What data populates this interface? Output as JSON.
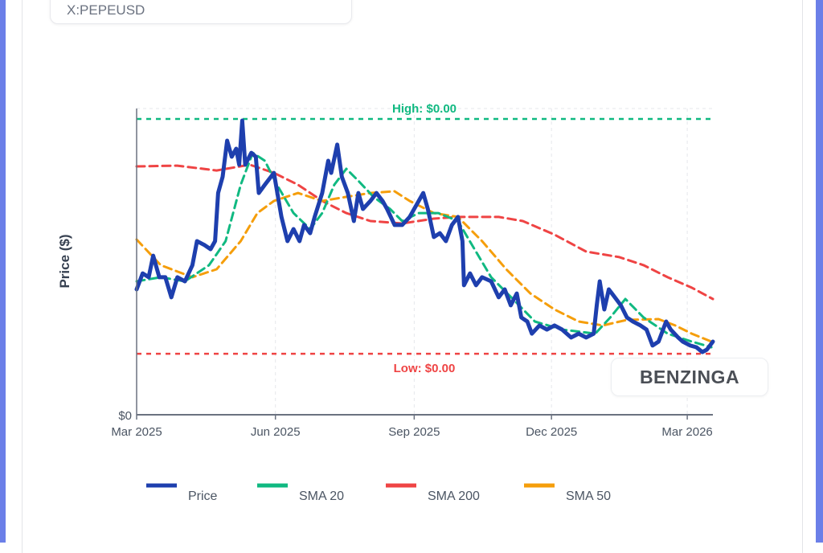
{
  "header": {
    "ticker": "X:PEPEUSD"
  },
  "watermark": "BENZINGA",
  "colors": {
    "price": "#1e3fae",
    "sma20": "#10b981",
    "sma200": "#ef4444",
    "sma50": "#f59e0b",
    "accent": "#6b7fe8"
  },
  "chart_data": {
    "type": "line",
    "title": "",
    "xlabel": "",
    "ylabel": "Price ($)",
    "x_units": "days since 2025-03-01",
    "y_units": "price in 1e-6 USD (approx.)",
    "xlim": [
      0,
      382
    ],
    "ylim": [
      0,
      16.46
    ],
    "x_ticks": [
      {
        "day": 0,
        "label": "Mar 2025"
      },
      {
        "day": 92,
        "label": "Jun 2025"
      },
      {
        "day": 184,
        "label": "Sep 2025"
      },
      {
        "day": 275,
        "label": "Dec 2025"
      },
      {
        "day": 365,
        "label": "Mar 2026"
      }
    ],
    "y_ticks": [
      {
        "value": 0,
        "label": "$0"
      }
    ],
    "grid": true,
    "legend_position": "bottom",
    "annotations": {
      "high": {
        "value": 15.9,
        "label": "High: $0.00"
      },
      "low": {
        "value": 3.28,
        "label": "Low: $0.00"
      }
    },
    "series": [
      {
        "key": "price",
        "name": "Price",
        "x": [
          0,
          4,
          8,
          11,
          15,
          19,
          23,
          27,
          32,
          37,
          40,
          45,
          49,
          52,
          54,
          57,
          60,
          63,
          66,
          68,
          70,
          72,
          76,
          79,
          81,
          85,
          91,
          96,
          100,
          104,
          108,
          111,
          115,
          118,
          123,
          127,
          129,
          133,
          136,
          140,
          144,
          147,
          150,
          155,
          159,
          163,
          166,
          171,
          176,
          181,
          187,
          190,
          193,
          197,
          201,
          205,
          209,
          213,
          216,
          217,
          221,
          225,
          229,
          235,
          240,
          244,
          248,
          252,
          255,
          259,
          262,
          267,
          272,
          277,
          282,
          288,
          293,
          298,
          303,
          305,
          307,
          310,
          313,
          317,
          321,
          325,
          329,
          334,
          338,
          342,
          346,
          351,
          354,
          359,
          362,
          367,
          371,
          375,
          378,
          382
        ],
        "y": [
          6.74,
          7.6,
          7.39,
          8.55,
          7.39,
          7.39,
          6.31,
          7.39,
          7.17,
          8.04,
          9.33,
          9.12,
          8.9,
          9.33,
          11.92,
          12.79,
          14.73,
          13.87,
          14.3,
          13.44,
          15.81,
          13.44,
          14.08,
          13.87,
          11.92,
          12.36,
          13.0,
          10.63,
          9.33,
          9.98,
          9.33,
          10.2,
          9.76,
          10.63,
          11.92,
          13.65,
          13.0,
          14.52,
          12.79,
          11.92,
          10.41,
          11.92,
          11.06,
          11.49,
          11.92,
          11.49,
          11.06,
          10.2,
          10.2,
          10.63,
          11.49,
          11.92,
          11.06,
          9.55,
          9.76,
          9.33,
          10.2,
          10.63,
          9.33,
          6.96,
          7.6,
          6.96,
          7.39,
          7.17,
          6.31,
          6.74,
          5.88,
          6.52,
          5.23,
          5.01,
          4.36,
          4.8,
          4.58,
          4.8,
          4.58,
          4.15,
          4.36,
          4.15,
          4.36,
          5.88,
          7.17,
          5.66,
          6.74,
          6.31,
          5.88,
          5.23,
          5.01,
          4.8,
          4.58,
          3.72,
          3.93,
          5.01,
          4.58,
          4.15,
          3.93,
          3.72,
          3.63,
          3.37,
          3.5,
          3.93
        ]
      },
      {
        "key": "sma20",
        "name": "SMA 20",
        "x": [
          0,
          16,
          32,
          48,
          59,
          69,
          77,
          85,
          93,
          104,
          115,
          123,
          131,
          139,
          147,
          157,
          168,
          176,
          187,
          200,
          213,
          224,
          235,
          251,
          264,
          282,
          304,
          314,
          324,
          336,
          352,
          368,
          381
        ],
        "y": [
          7.17,
          7.39,
          7.17,
          8.04,
          9.33,
          12.36,
          14.08,
          13.65,
          12.36,
          10.84,
          9.98,
          10.84,
          12.36,
          13.22,
          12.57,
          11.71,
          11.06,
          10.41,
          10.84,
          10.84,
          10.41,
          8.9,
          7.39,
          6.09,
          5.01,
          4.58,
          4.36,
          5.23,
          6.22,
          5.23,
          4.36,
          3.93,
          3.63
        ]
      },
      {
        "key": "sma200",
        "name": "SMA 200",
        "x": [
          0,
          27,
          53,
          75,
          91,
          107,
          123,
          139,
          155,
          176,
          197,
          213,
          240,
          256,
          277,
          298,
          320,
          336,
          352,
          368,
          382
        ],
        "y": [
          13.35,
          13.39,
          13.13,
          13.44,
          13.0,
          12.36,
          11.49,
          10.84,
          10.41,
          10.28,
          10.54,
          10.63,
          10.63,
          10.41,
          9.68,
          8.77,
          8.47,
          8.04,
          7.39,
          6.83,
          6.22
        ]
      },
      {
        "key": "sma50",
        "name": "SMA 50",
        "x": [
          0,
          16,
          37,
          53,
          69,
          80,
          91,
          107,
          123,
          139,
          155,
          171,
          181,
          197,
          213,
          229,
          245,
          261,
          277,
          293,
          309,
          325,
          346,
          357,
          368,
          381
        ],
        "y": [
          9.42,
          8.04,
          7.39,
          7.82,
          9.33,
          10.84,
          11.49,
          11.92,
          11.49,
          11.71,
          11.92,
          12.01,
          11.49,
          10.84,
          10.63,
          9.33,
          7.82,
          6.52,
          5.66,
          5.01,
          4.8,
          5.1,
          5.14,
          4.8,
          4.36,
          3.93
        ]
      }
    ]
  }
}
